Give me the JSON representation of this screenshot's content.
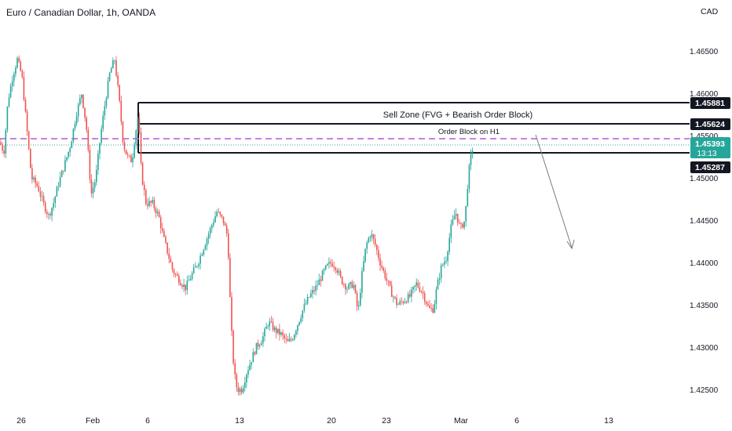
{
  "header": {
    "title": "Euro / Canadian Dollar, 1h, OANDA",
    "currency": "CAD"
  },
  "annotations": {
    "sell_zone_label": "Sell Zone (FVG + Bearish Order Block)",
    "order_block_label": "Order Block on H1"
  },
  "price_tags": {
    "zone_top": "1.45881",
    "zone_mid": "1.45624",
    "last_price": "1.45393",
    "countdown": "13:13",
    "zone_bottom": "1.45287"
  },
  "colors": {
    "up_candle": "#26a69a",
    "down_candle": "#ef5350",
    "dashed_level": "#b05cd6",
    "tag_bg": "#131722",
    "last_price_bg": "#26a69a",
    "zone_line": "#131722",
    "arrow": "#787b86"
  },
  "chart_data": {
    "type": "candlestick",
    "title": "Euro / Canadian Dollar, 1h, OANDA",
    "y_axis": {
      "ticks": [
        "1.46500",
        "1.46000",
        "1.45500",
        "1.45000",
        "1.44500",
        "1.44000",
        "1.43500",
        "1.43000",
        "1.42500"
      ],
      "range": [
        1.4225,
        1.4685
      ],
      "unit": "CAD"
    },
    "x_axis": {
      "ticks": [
        "26",
        "Feb",
        "6",
        "13",
        "20",
        "23",
        "Mar",
        "6",
        "13"
      ]
    },
    "levels": {
      "zone_top": 1.45881,
      "zone_mid": 1.45624,
      "zone_bottom": 1.45287,
      "last_price": 1.45393,
      "dashed_level": 1.4546
    },
    "price_path": [
      [
        0,
        1.4542
      ],
      [
        5,
        1.453
      ],
      [
        10,
        1.459
      ],
      [
        16,
        1.462
      ],
      [
        22,
        1.464
      ],
      [
        28,
        1.462
      ],
      [
        34,
        1.456
      ],
      [
        40,
        1.45
      ],
      [
        48,
        1.449
      ],
      [
        55,
        1.447
      ],
      [
        62,
        1.4455
      ],
      [
        68,
        1.447
      ],
      [
        75,
        1.4495
      ],
      [
        82,
        1.4515
      ],
      [
        90,
        1.454
      ],
      [
        97,
        1.4575
      ],
      [
        104,
        1.46
      ],
      [
        110,
        1.456
      ],
      [
        116,
        1.448
      ],
      [
        122,
        1.45
      ],
      [
        128,
        1.455
      ],
      [
        134,
        1.459
      ],
      [
        140,
        1.4625
      ],
      [
        146,
        1.464
      ],
      [
        152,
        1.459
      ],
      [
        157,
        1.454
      ],
      [
        162,
        1.4525
      ],
      [
        168,
        1.452
      ],
      [
        172,
        1.455
      ],
      [
        176,
        1.4575
      ],
      [
        180,
        1.4505
      ],
      [
        186,
        1.447
      ],
      [
        194,
        1.447
      ],
      [
        202,
        1.4455
      ],
      [
        208,
        1.443
      ],
      [
        214,
        1.441
      ],
      [
        220,
        1.439
      ],
      [
        228,
        1.438
      ],
      [
        236,
        1.437
      ],
      [
        244,
        1.4385
      ],
      [
        252,
        1.44
      ],
      [
        260,
        1.442
      ],
      [
        268,
        1.444
      ],
      [
        276,
        1.446
      ],
      [
        284,
        1.445
      ],
      [
        290,
        1.443
      ],
      [
        294,
        1.433
      ],
      [
        298,
        1.427
      ],
      [
        302,
        1.425
      ],
      [
        308,
        1.425
      ],
      [
        314,
        1.427
      ],
      [
        320,
        1.4285
      ],
      [
        326,
        1.43
      ],
      [
        334,
        1.431
      ],
      [
        342,
        1.433
      ],
      [
        350,
        1.432
      ],
      [
        358,
        1.4315
      ],
      [
        366,
        1.4305
      ],
      [
        372,
        1.431
      ],
      [
        378,
        1.4325
      ],
      [
        386,
        1.4345
      ],
      [
        394,
        1.436
      ],
      [
        402,
        1.437
      ],
      [
        410,
        1.4385
      ],
      [
        416,
        1.4395
      ],
      [
        422,
        1.44
      ],
      [
        428,
        1.4395
      ],
      [
        434,
        1.438
      ],
      [
        442,
        1.437
      ],
      [
        450,
        1.4375
      ],
      [
        456,
        1.434
      ],
      [
        460,
        1.438
      ],
      [
        466,
        1.442
      ],
      [
        472,
        1.4435
      ],
      [
        478,
        1.442
      ],
      [
        484,
        1.44
      ],
      [
        490,
        1.4385
      ],
      [
        498,
        1.4365
      ],
      [
        506,
        1.435
      ],
      [
        514,
        1.4355
      ],
      [
        522,
        1.436
      ],
      [
        530,
        1.4375
      ],
      [
        538,
        1.4365
      ],
      [
        546,
        1.4345
      ],
      [
        552,
        1.4345
      ],
      [
        556,
        1.437
      ],
      [
        562,
        1.4395
      ],
      [
        568,
        1.4405
      ],
      [
        574,
        1.444
      ],
      [
        580,
        1.446
      ],
      [
        586,
        1.444
      ],
      [
        592,
        1.445
      ],
      [
        596,
        1.45
      ],
      [
        600,
        1.453
      ],
      [
        604,
        1.454
      ]
    ]
  }
}
